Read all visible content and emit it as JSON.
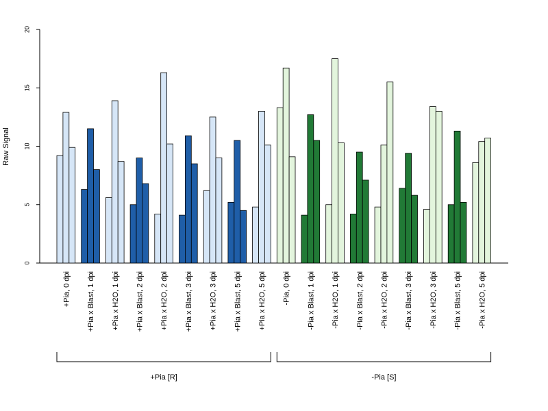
{
  "chart_data": {
    "type": "bar",
    "title": "",
    "xlabel": "",
    "ylabel": "Raw Signal",
    "ylim": [
      0,
      20
    ],
    "yticks": [
      "0",
      "5",
      "10",
      "15",
      "20"
    ],
    "grid": false,
    "categories": [
      "+Pia, 0 dpi",
      "+Pia x Blast, 1 dpi",
      "+Pia x H2O, 1 dpi",
      "+Pia x Blast, 2 dpi",
      "+Pia x H2O, 2 dpi",
      "+Pia x Blast, 3 dpi",
      "+Pia x H2O, 3 dpi",
      "+Pia x Blast, 5 dpi",
      "+Pia x H2O, 5 dpi",
      "-Pia, 0 dpi",
      "-Pia x Blast, 1 dpi",
      "-Pia x H2O, 1 dpi",
      "-Pia x Blast, 2 dpi",
      "-Pia x H2O, 2 dpi",
      "-Pia x Blast, 3 dpi",
      "-Pia x H2O, 3 dpi",
      "-Pia x Blast, 5 dpi",
      "-Pia x H2O, 5 dpi"
    ],
    "replicates": [
      [
        9.2,
        12.9,
        9.9
      ],
      [
        6.3,
        11.5,
        8.0
      ],
      [
        5.6,
        13.9,
        8.7
      ],
      [
        5.0,
        9.0,
        6.8
      ],
      [
        4.2,
        16.3,
        10.2
      ],
      [
        4.1,
        10.9,
        8.5
      ],
      [
        6.2,
        12.5,
        9.0
      ],
      [
        5.2,
        10.5,
        4.5
      ],
      [
        4.8,
        13.0,
        10.1
      ],
      [
        13.3,
        16.7,
        9.1
      ],
      [
        4.1,
        12.7,
        10.5
      ],
      [
        5.0,
        17.5,
        10.3
      ],
      [
        4.2,
        9.5,
        7.1
      ],
      [
        4.8,
        10.1,
        15.5
      ],
      [
        6.4,
        9.4,
        5.8
      ],
      [
        4.6,
        13.4,
        13.0
      ],
      [
        5.0,
        11.3,
        5.2
      ],
      [
        8.6,
        10.4,
        10.7
      ]
    ],
    "bar_colors": [
      "#d6e6f7",
      "#1f5ea8",
      "#d6e6f7",
      "#1f5ea8",
      "#d6e6f7",
      "#1f5ea8",
      "#d6e6f7",
      "#1f5ea8",
      "#d6e6f7",
      "#e3f5dd",
      "#217a36",
      "#e3f5dd",
      "#217a36",
      "#e3f5dd",
      "#217a36",
      "#e3f5dd",
      "#217a36",
      "#e3f5dd"
    ],
    "groups": [
      {
        "label": "+Pia [R]",
        "from": 0,
        "to": 8
      },
      {
        "label": "-Pia [S]",
        "from": 9,
        "to": 17
      }
    ]
  }
}
